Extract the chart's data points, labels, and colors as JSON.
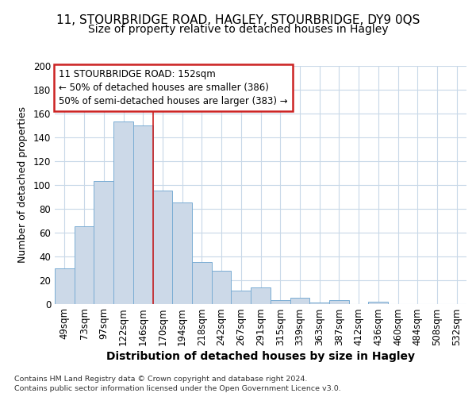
{
  "title1": "11, STOURBRIDGE ROAD, HAGLEY, STOURBRIDGE, DY9 0QS",
  "title2": "Size of property relative to detached houses in Hagley",
  "xlabel": "Distribution of detached houses by size in Hagley",
  "ylabel": "Number of detached properties",
  "categories": [
    "49sqm",
    "73sqm",
    "97sqm",
    "122sqm",
    "146sqm",
    "170sqm",
    "194sqm",
    "218sqm",
    "242sqm",
    "267sqm",
    "291sqm",
    "315sqm",
    "339sqm",
    "363sqm",
    "387sqm",
    "412sqm",
    "436sqm",
    "460sqm",
    "484sqm",
    "508sqm",
    "532sqm"
  ],
  "values": [
    30,
    65,
    103,
    153,
    150,
    95,
    85,
    35,
    28,
    11,
    14,
    3,
    5,
    1,
    3,
    0,
    2,
    0,
    0,
    0,
    0
  ],
  "bar_color": "#ccd9e8",
  "bar_edge_color": "#7aadd4",
  "red_line_index": 4,
  "annotation_text": "11 STOURBRIDGE ROAD: 152sqm\n← 50% of detached houses are smaller (386)\n50% of semi-detached houses are larger (383) →",
  "annotation_box_color": "#ffffff",
  "annotation_border_color": "#cc2222",
  "footer1": "Contains HM Land Registry data © Crown copyright and database right 2024.",
  "footer2": "Contains public sector information licensed under the Open Government Licence v3.0.",
  "bg_color": "#ffffff",
  "grid_color": "#c8d8e8",
  "ylim": [
    0,
    200
  ],
  "yticks": [
    0,
    20,
    40,
    60,
    80,
    100,
    120,
    140,
    160,
    180,
    200
  ],
  "title1_fontsize": 11,
  "title2_fontsize": 10,
  "xlabel_fontsize": 10,
  "ylabel_fontsize": 9,
  "tick_fontsize": 8.5,
  "ann_fontsize": 8.5
}
